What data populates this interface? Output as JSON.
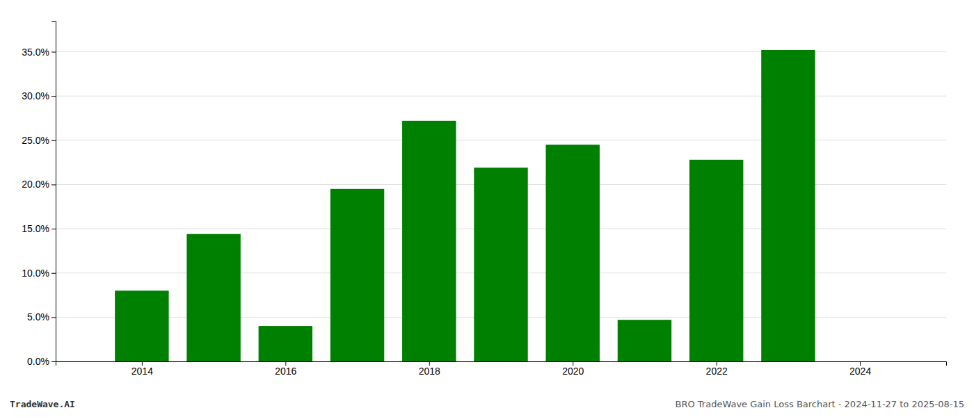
{
  "chart_data": {
    "type": "bar",
    "x": [
      2014,
      2015,
      2016,
      2017,
      2018,
      2019,
      2020,
      2021,
      2022,
      2023
    ],
    "values": [
      0.08,
      0.144,
      0.04,
      0.195,
      0.272,
      0.219,
      0.245,
      0.047,
      0.228,
      0.352
    ],
    "color": "#008000",
    "xlim": [
      2012.8,
      2025.2
    ],
    "xticks": [
      2014,
      2016,
      2018,
      2020,
      2022,
      2024
    ],
    "ylim": [
      0,
      0.385
    ],
    "yticks": [
      {
        "value": 0.0,
        "label": "0.0%"
      },
      {
        "value": 0.05,
        "label": "5.0%"
      },
      {
        "value": 0.1,
        "label": "10.0%"
      },
      {
        "value": 0.15,
        "label": "15.0%"
      },
      {
        "value": 0.2,
        "label": "20.0%"
      },
      {
        "value": 0.25,
        "label": "25.0%"
      },
      {
        "value": 0.3,
        "label": "30.0%"
      },
      {
        "value": 0.35,
        "label": "35.0%"
      }
    ],
    "grid": true,
    "annotations": [
      "TradeWave.AI",
      "BRO TradeWave Gain Loss Barchart - 2024-11-27 to 2025-08-15"
    ]
  }
}
